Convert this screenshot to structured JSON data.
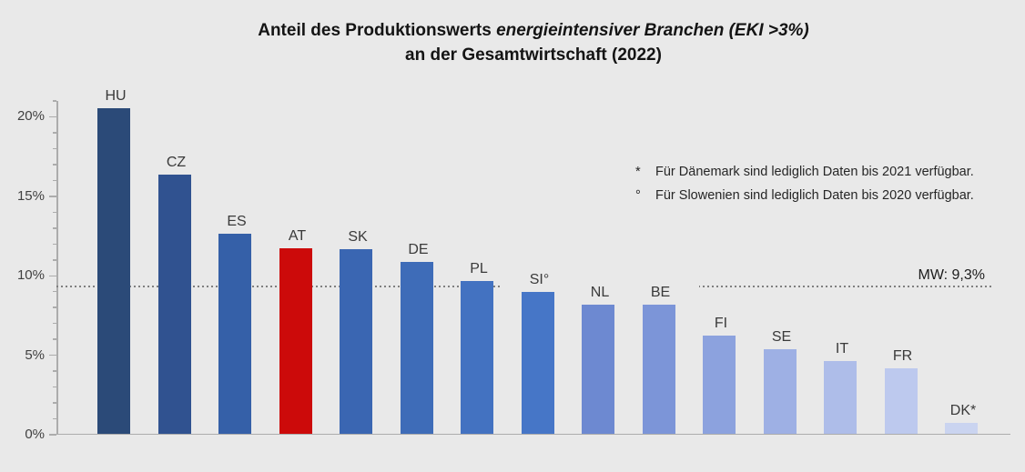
{
  "page": {
    "background_color": "#E9E9E9",
    "axis_color": "#ACACAC",
    "text_color": "#3A3A3A"
  },
  "title": {
    "line1_regular": "Anteil des Produktionswerts ",
    "line1_italic": "energieintensiver Branchen (EKI >3%)",
    "line2": "an der Gesamtwirtschaft (2022)"
  },
  "notes": [
    {
      "symbol": "*",
      "text": "Für Dänemark sind lediglich Daten bis 2021 verfügbar."
    },
    {
      "symbol": "°",
      "text": "Für Slowenien sind lediglich Daten bis 2020 verfügbar."
    }
  ],
  "mean_line": {
    "label": "MW: 9,3%",
    "value": 9.3,
    "color": "#7F7F7F",
    "style": "dotted"
  },
  "chart_data": {
    "type": "bar",
    "title": "Anteil des Produktionswerts energieintensiver Branchen (EKI >3%) an der Gesamtwirtschaft (2022)",
    "categories": [
      "HU",
      "CZ",
      "ES",
      "AT",
      "SK",
      "DE",
      "PL",
      "SI°",
      "NL",
      "BE",
      "FI",
      "SE",
      "IT",
      "FR",
      "DK*"
    ],
    "values": [
      20.5,
      16.3,
      12.6,
      11.7,
      11.6,
      10.8,
      9.6,
      8.9,
      8.1,
      8.1,
      6.2,
      5.3,
      4.6,
      4.1,
      0.7
    ],
    "bar_colors": [
      "#2B4A78",
      "#305290",
      "#3560A8",
      "#CC0A0A",
      "#3A66B2",
      "#3E6CB8",
      "#4372C1",
      "#4676C7",
      "#6D89D1",
      "#7C95D8",
      "#8CA2DE",
      "#9EB0E4",
      "#AEBDE9",
      "#BDC9EE",
      "#CAD4F0"
    ],
    "highlight_category": "AT",
    "highlight_color": "#CC0A0A",
    "xlabel": "",
    "ylabel": "",
    "ylim": [
      0,
      21
    ],
    "ytick_major_step": 5,
    "ytick_minor_step": 1,
    "ytick_labels": [
      "0%",
      "5%",
      "10%",
      "15%",
      "20%"
    ],
    "grid": false,
    "legend": false,
    "mean_value": 9.3,
    "mean_label": "MW: 9,3%"
  }
}
